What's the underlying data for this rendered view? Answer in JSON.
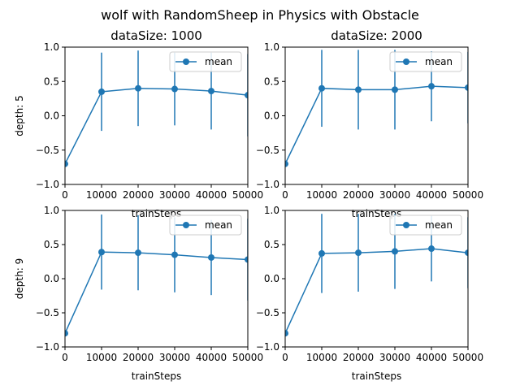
{
  "figure": {
    "title": "wolf with RandomSheep in Physics with Obstacle"
  },
  "colors": {
    "series": "#1f77b4",
    "axes": "#000000",
    "legend_border": "#cccccc"
  },
  "chart_data": [
    {
      "type": "line",
      "title": "dataSize: 1000",
      "xlabel": "trainSteps",
      "ylabel": "depth: 5",
      "xlim": [
        0,
        50000
      ],
      "ylim": [
        -1.0,
        1.0
      ],
      "xticks": [
        0,
        10000,
        20000,
        30000,
        40000,
        50000
      ],
      "xtick_labels": [
        "0",
        "10000",
        "20000",
        "30000",
        "40000",
        "50000"
      ],
      "yticks": [
        -1.0,
        -0.5,
        0.0,
        0.5,
        1.0
      ],
      "ytick_labels": [
        "−1.0",
        "−0.5",
        "0.0",
        "0.5",
        "1.0"
      ],
      "grid": false,
      "legend": {
        "position": "top-right",
        "entries": [
          "mean"
        ]
      },
      "series": [
        {
          "name": "mean",
          "x": [
            0,
            10000,
            20000,
            30000,
            40000,
            50000
          ],
          "y": [
            -0.7,
            0.35,
            0.4,
            0.39,
            0.36,
            0.3
          ],
          "err": [
            0.0,
            0.57,
            0.55,
            0.53,
            0.56,
            0.6
          ]
        }
      ]
    },
    {
      "type": "line",
      "title": "dataSize: 2000",
      "xlabel": "trainSteps",
      "ylabel": "",
      "xlim": [
        0,
        50000
      ],
      "ylim": [
        -1.0,
        1.0
      ],
      "xticks": [
        0,
        10000,
        20000,
        30000,
        40000,
        50000
      ],
      "xtick_labels": [
        "0",
        "10000",
        "20000",
        "30000",
        "40000",
        "50000"
      ],
      "yticks": [
        -1.0,
        -0.5,
        0.0,
        0.5,
        1.0
      ],
      "ytick_labels": [
        "−1.0",
        "−0.5",
        "0.0",
        "0.5",
        "1.0"
      ],
      "grid": false,
      "legend": {
        "position": "top-right",
        "entries": [
          "mean"
        ]
      },
      "series": [
        {
          "name": "mean",
          "x": [
            0,
            10000,
            20000,
            30000,
            40000,
            50000
          ],
          "y": [
            -0.7,
            0.4,
            0.38,
            0.38,
            0.43,
            0.41
          ],
          "err": [
            0.0,
            0.56,
            0.58,
            0.58,
            0.51,
            0.52
          ]
        }
      ]
    },
    {
      "type": "line",
      "title": "",
      "xlabel": "trainSteps",
      "ylabel": "depth: 9",
      "xlim": [
        0,
        50000
      ],
      "ylim": [
        -1.0,
        1.0
      ],
      "xticks": [
        0,
        10000,
        20000,
        30000,
        40000,
        50000
      ],
      "xtick_labels": [
        "0",
        "10000",
        "20000",
        "30000",
        "40000",
        "50000"
      ],
      "yticks": [
        -1.0,
        -0.5,
        0.0,
        0.5,
        1.0
      ],
      "ytick_labels": [
        "−1.0",
        "−0.5",
        "0.0",
        "0.5",
        "1.0"
      ],
      "grid": false,
      "legend": {
        "position": "top-right",
        "entries": [
          "mean"
        ]
      },
      "series": [
        {
          "name": "mean",
          "x": [
            0,
            10000,
            20000,
            30000,
            40000,
            50000
          ],
          "y": [
            -0.8,
            0.39,
            0.38,
            0.35,
            0.31,
            0.28
          ],
          "err": [
            0.0,
            0.55,
            0.55,
            0.55,
            0.55,
            0.6
          ]
        }
      ]
    },
    {
      "type": "line",
      "title": "",
      "xlabel": "trainSteps",
      "ylabel": "",
      "xlim": [
        0,
        50000
      ],
      "ylim": [
        -1.0,
        1.0
      ],
      "xticks": [
        0,
        10000,
        20000,
        30000,
        40000,
        50000
      ],
      "xtick_labels": [
        "0",
        "10000",
        "20000",
        "30000",
        "40000",
        "50000"
      ],
      "yticks": [
        -1.0,
        -0.5,
        0.0,
        0.5,
        1.0
      ],
      "ytick_labels": [
        "−1.0",
        "−0.5",
        "0.0",
        "0.5",
        "1.0"
      ],
      "grid": false,
      "legend": {
        "position": "top-right",
        "entries": [
          "mean"
        ]
      },
      "series": [
        {
          "name": "mean",
          "x": [
            0,
            10000,
            20000,
            30000,
            40000,
            50000
          ],
          "y": [
            -0.8,
            0.37,
            0.38,
            0.4,
            0.44,
            0.38
          ],
          "err": [
            0.0,
            0.58,
            0.57,
            0.55,
            0.48,
            0.52
          ]
        }
      ]
    }
  ]
}
